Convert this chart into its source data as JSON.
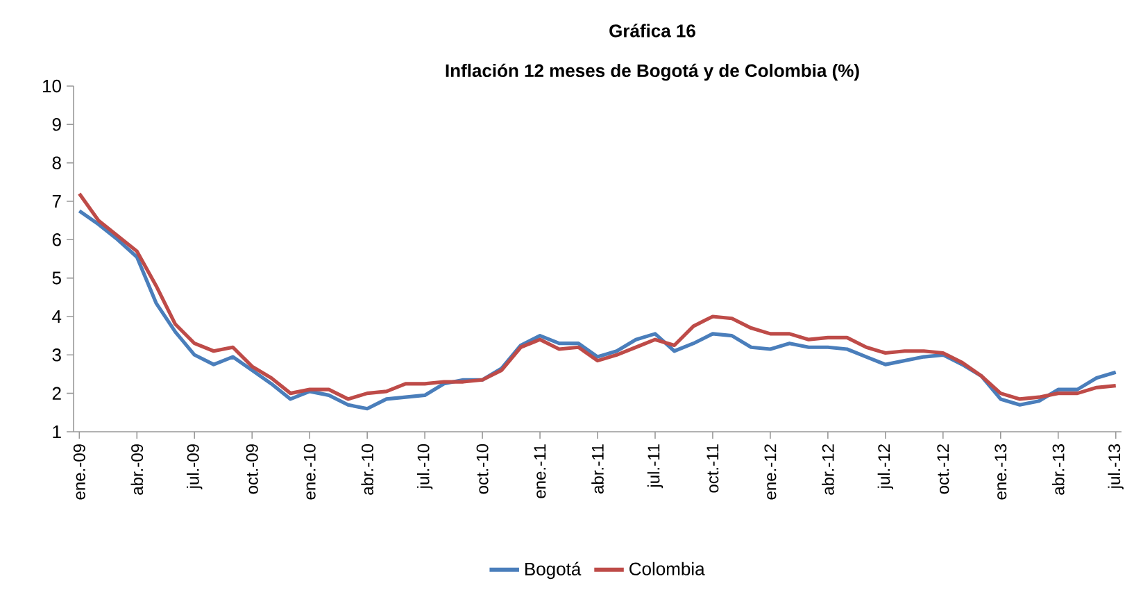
{
  "chart_data": {
    "type": "line",
    "title": "Gráfica 16",
    "subtitle": "Inflación 12 meses de Bogotá y de Colombia (%)",
    "categories": [
      "ene.-09",
      null,
      null,
      "abr.-09",
      null,
      null,
      "jul.-09",
      null,
      null,
      "oct.-09",
      null,
      null,
      "ene.-10",
      null,
      null,
      "abr.-10",
      null,
      null,
      "jul.-10",
      null,
      null,
      "oct.-10",
      null,
      null,
      "ene.-11",
      null,
      null,
      "abr.-11",
      null,
      null,
      "jul.-11",
      null,
      null,
      "oct.-11",
      null,
      null,
      "ene.-12",
      null,
      null,
      "abr.-12",
      null,
      null,
      "jul.-12",
      null,
      null,
      "oct.-12",
      null,
      null,
      "ene.-13",
      null,
      null,
      "abr.-13",
      null,
      null,
      "jul.-13"
    ],
    "series": [
      {
        "name": "Bogotá",
        "color": "#4a7ebb",
        "values": [
          6.75,
          6.4,
          6.0,
          5.55,
          4.35,
          3.6,
          3.0,
          2.75,
          2.95,
          2.6,
          2.25,
          1.85,
          2.05,
          1.95,
          1.7,
          1.6,
          1.85,
          1.9,
          1.95,
          2.25,
          2.35,
          2.35,
          2.65,
          3.25,
          3.5,
          3.3,
          3.3,
          2.95,
          3.1,
          3.4,
          3.55,
          3.1,
          3.3,
          3.55,
          3.5,
          3.2,
          3.15,
          3.3,
          3.2,
          3.2,
          3.15,
          2.95,
          2.75,
          2.85,
          2.95,
          3.0,
          2.75,
          2.45,
          1.85,
          1.7,
          1.8,
          2.1,
          2.1,
          2.4,
          2.55
        ]
      },
      {
        "name": "Colombia",
        "color": "#be4b48",
        "values": [
          7.2,
          6.5,
          6.1,
          5.7,
          4.8,
          3.8,
          3.3,
          3.1,
          3.2,
          2.7,
          2.4,
          2.0,
          2.1,
          2.1,
          1.85,
          2.0,
          2.05,
          2.25,
          2.25,
          2.3,
          2.3,
          2.35,
          2.6,
          3.2,
          3.4,
          3.15,
          3.2,
          2.85,
          3.0,
          3.2,
          3.4,
          3.25,
          3.75,
          4.0,
          3.95,
          3.7,
          3.55,
          3.55,
          3.4,
          3.45,
          3.45,
          3.2,
          3.05,
          3.1,
          3.1,
          3.05,
          2.8,
          2.45,
          2.0,
          1.85,
          1.9,
          2.0,
          2.0,
          2.15,
          2.2
        ]
      }
    ],
    "ylim": [
      1,
      10
    ],
    "yticks": [
      1,
      2,
      3,
      4,
      5,
      6,
      7,
      8,
      9,
      10
    ],
    "grid": false,
    "legend": "bottom",
    "marker": "none",
    "line_style": "solid"
  }
}
